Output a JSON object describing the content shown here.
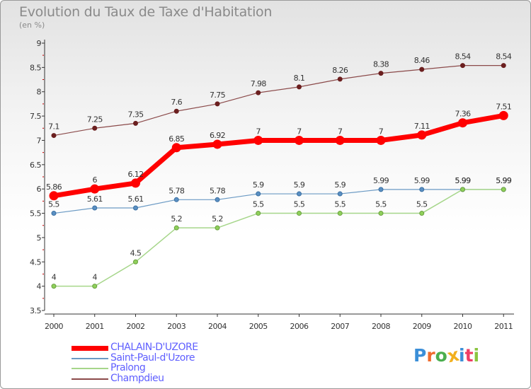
{
  "title": "Evolution du Taux de Taxe d'Habitation",
  "unit": "(en %)",
  "logo": {
    "text": "Proxiti",
    "colors": [
      "#3b8fd8",
      "#ef6b2d",
      "#4bae4f",
      "#f2b01e",
      "#3b8fd8",
      "#ef3d64",
      "#8ac43f"
    ]
  },
  "chart_data": {
    "type": "line",
    "title": "Evolution du Taux de Taxe d'Habitation",
    "ylabel": "(en %)",
    "xlabel": "",
    "x": [
      "2000",
      "2001",
      "2002",
      "2003",
      "2004",
      "2005",
      "2006",
      "2007",
      "2008",
      "2009",
      "2010",
      "2011"
    ],
    "ylim": [
      3.5,
      9
    ],
    "yticks": [
      "3.5",
      "4",
      "4.5",
      "5",
      "5.5",
      "6",
      "6.5",
      "7",
      "7.5",
      "8",
      "8.5",
      "9"
    ],
    "grid": false,
    "legend_position": "bottom-left",
    "series": [
      {
        "name": "Champdieu",
        "color": "#8b4a4a",
        "values": [
          7.1,
          7.25,
          7.35,
          7.6,
          7.75,
          7.98,
          8.1,
          8.26,
          8.38,
          8.46,
          8.54,
          8.54
        ],
        "labels": [
          "7.1",
          "7.25",
          "7.35",
          "7.6",
          "7.75",
          "7.98",
          "8.1",
          "8.26",
          "8.38",
          "8.46",
          "8.54",
          "8.54"
        ]
      },
      {
        "name": "Saint-Paul-d'Uzore",
        "color": "#6b9ac4",
        "values": [
          5.5,
          5.61,
          5.61,
          5.78,
          5.78,
          5.9,
          5.9,
          5.9,
          5.99,
          5.99,
          5.99,
          5.99
        ],
        "labels": [
          "5.5",
          "5.61",
          "5.61",
          "5.78",
          "5.78",
          "5.9",
          "5.9",
          "5.9",
          "5.99",
          "5.99",
          "5.99",
          "5.99"
        ]
      },
      {
        "name": "Pralong",
        "color": "#a6d68a",
        "values": [
          4,
          4,
          4.5,
          5.2,
          5.2,
          5.5,
          5.5,
          5.5,
          5.5,
          5.5,
          5.99,
          5.99
        ],
        "labels": [
          "4",
          "4",
          "4.5",
          "5.2",
          "5.2",
          "5.5",
          "5.5",
          "5.5",
          "5.5",
          "5.5",
          "5.99",
          "5.99"
        ]
      },
      {
        "name": "CHALAIN-D'UZORE",
        "color": "#ff0000",
        "values": [
          5.86,
          6,
          6.12,
          6.85,
          6.92,
          7,
          7,
          7,
          7,
          7.11,
          7.36,
          7.51
        ],
        "labels": [
          "5.86",
          "6",
          "6.12",
          "6.85",
          "6.92",
          "7",
          "7",
          "7",
          "7",
          "7.11",
          "7.36",
          "7.51"
        ]
      }
    ],
    "legend": [
      "CHALAIN-D'UZORE",
      "Saint-Paul-d'Uzore",
      "Pralong",
      "Champdieu"
    ]
  }
}
